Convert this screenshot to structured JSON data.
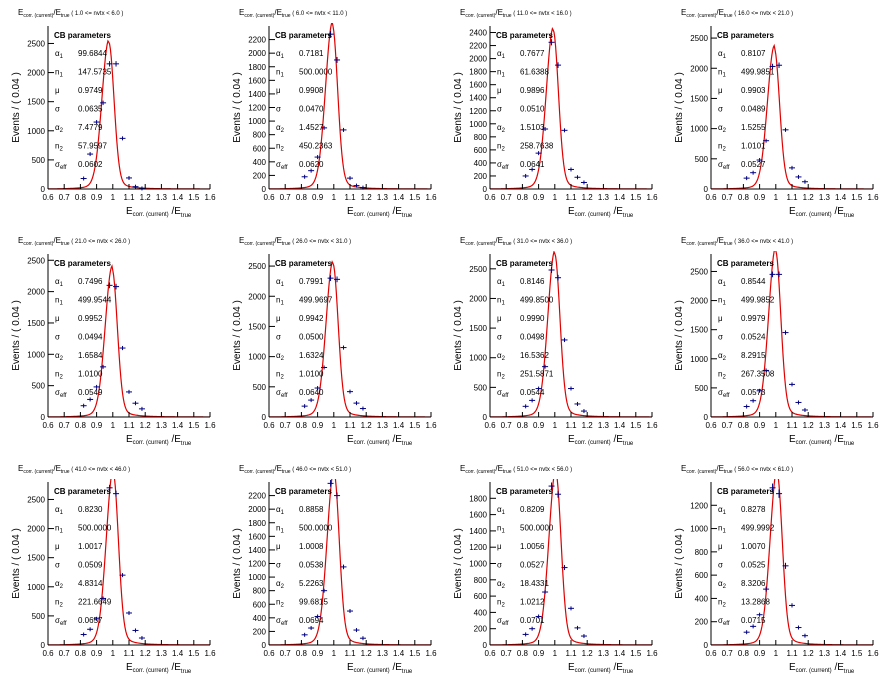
{
  "common": {
    "ylabel": "Events / ( 0.04 )",
    "xlabel_main": "E",
    "xlabel_sub": "corr. (current)",
    "xlabel_div": "/E",
    "xlabel_sub2": "true",
    "title_main": "E",
    "title_sub": "corr. (current)",
    "title_div": "/E",
    "title_sub2": "true",
    "legend_header": "CB parameters",
    "param_symbols": [
      {
        "sym": "α",
        "sub": "1"
      },
      {
        "sym": "n",
        "sub": "1"
      },
      {
        "sym": "μ",
        "sub": ""
      },
      {
        "sym": "σ",
        "sub": ""
      },
      {
        "sym": "α",
        "sub": "2"
      },
      {
        "sym": "n",
        "sub": "2"
      },
      {
        "sym": "σ",
        "sub": "eff"
      }
    ],
    "x_ticks": [
      "0.6",
      "0.7",
      "0.8",
      "0.9",
      "1",
      "1.1",
      "1.2",
      "1.3",
      "1.4",
      "1.5",
      "1.6"
    ],
    "colors": {
      "fit": "#e00000",
      "data": "#000080",
      "axis": "#000000"
    }
  },
  "chart_data": [
    {
      "type": "line",
      "title": "( 1.0 <= nvtx < 6.0 )",
      "xlim": [
        0.6,
        1.6
      ],
      "ylim": [
        0,
        2800
      ],
      "y_ticks": [
        0,
        500,
        1000,
        1500,
        2000,
        2500
      ],
      "peak": 2380,
      "params": [
        "99.6844",
        "147.5735",
        "0.9749",
        "0.0635",
        "7.4779",
        "57.9597",
        "0.0602"
      ],
      "points": [
        [
          0.82,
          180
        ],
        [
          0.86,
          600
        ],
        [
          0.9,
          1150
        ],
        [
          0.94,
          1480
        ],
        [
          0.98,
          2150
        ],
        [
          1.02,
          2150
        ],
        [
          1.06,
          870
        ],
        [
          1.1,
          190
        ],
        [
          1.14,
          40
        ],
        [
          1.18,
          10
        ]
      ]
    },
    {
      "type": "line",
      "title": "( 6.0 <= nvtx < 11.0 )",
      "xlim": [
        0.6,
        1.6
      ],
      "ylim": [
        0,
        2400
      ],
      "y_ticks": [
        0,
        200,
        400,
        600,
        800,
        1000,
        1200,
        1400,
        1600,
        1800,
        2000,
        2200
      ],
      "peak": 2280,
      "params": [
        "0.7181",
        "500.0000",
        "0.9908",
        "0.0470",
        "1.4527",
        "450.2363",
        "0.0620"
      ],
      "points": [
        [
          0.82,
          180
        ],
        [
          0.86,
          270
        ],
        [
          0.9,
          470
        ],
        [
          0.94,
          900
        ],
        [
          0.98,
          2280
        ],
        [
          1.02,
          1900
        ],
        [
          1.06,
          870
        ],
        [
          1.1,
          160
        ],
        [
          1.14,
          50
        ],
        [
          1.18,
          20
        ]
      ]
    },
    {
      "type": "line",
      "title": "( 11.0 <= nvtx < 16.0 )",
      "xlim": [
        0.6,
        1.6
      ],
      "ylim": [
        0,
        2500
      ],
      "y_ticks": [
        0,
        200,
        400,
        600,
        800,
        1000,
        1200,
        1400,
        1600,
        1800,
        2000,
        2200,
        2400
      ],
      "peak": 2300,
      "params": [
        "0.7677",
        "61.6388",
        "0.9896",
        "0.0510",
        "1.5103",
        "258.7638",
        "0.0641"
      ],
      "points": [
        [
          0.82,
          200
        ],
        [
          0.86,
          300
        ],
        [
          0.9,
          550
        ],
        [
          0.94,
          920
        ],
        [
          0.98,
          2250
        ],
        [
          1.02,
          1900
        ],
        [
          1.06,
          900
        ],
        [
          1.1,
          300
        ],
        [
          1.14,
          180
        ],
        [
          1.18,
          100
        ]
      ]
    },
    {
      "type": "line",
      "title": "( 16.0 <= nvtx < 21.0 )",
      "xlim": [
        0.6,
        1.6
      ],
      "ylim": [
        0,
        2700
      ],
      "y_ticks": [
        0,
        500,
        1000,
        1500,
        2000,
        2500
      ],
      "peak": 2200,
      "params": [
        "0.8107",
        "499.9851",
        "0.9903",
        "0.0489",
        "1.5255",
        "1.0101",
        "0.0527"
      ],
      "points": [
        [
          0.82,
          180
        ],
        [
          0.86,
          270
        ],
        [
          0.9,
          480
        ],
        [
          0.94,
          800
        ],
        [
          0.98,
          2030
        ],
        [
          1.02,
          2050
        ],
        [
          1.06,
          980
        ],
        [
          1.1,
          350
        ],
        [
          1.14,
          200
        ],
        [
          1.18,
          120
        ]
      ]
    },
    {
      "type": "line",
      "title": "( 21.0 <= nvtx < 26.0 )",
      "xlim": [
        0.6,
        1.6
      ],
      "ylim": [
        0,
        2600
      ],
      "y_ticks": [
        0,
        500,
        1000,
        1500,
        2000,
        2500
      ],
      "peak": 2230,
      "params": [
        "0.7496",
        "499.9544",
        "0.9952",
        "0.0494",
        "1.6584",
        "1.0100",
        "0.0549"
      ],
      "points": [
        [
          0.82,
          180
        ],
        [
          0.86,
          280
        ],
        [
          0.9,
          480
        ],
        [
          0.94,
          800
        ],
        [
          0.98,
          2100
        ],
        [
          1.02,
          2080
        ],
        [
          1.06,
          1100
        ],
        [
          1.1,
          400
        ],
        [
          1.14,
          220
        ],
        [
          1.18,
          130
        ]
      ]
    },
    {
      "type": "line",
      "title": "( 26.0 <= nvtx < 31.0 )",
      "xlim": [
        0.6,
        1.6
      ],
      "ylim": [
        0,
        2700
      ],
      "y_ticks": [
        0,
        500,
        1000,
        1500,
        2000,
        2500
      ],
      "peak": 2400,
      "params": [
        "0.7991",
        "499.9697",
        "0.9942",
        "0.0500",
        "1.6324",
        "1.0100",
        "0.0640"
      ],
      "points": [
        [
          0.82,
          180
        ],
        [
          0.86,
          280
        ],
        [
          0.9,
          480
        ],
        [
          0.94,
          820
        ],
        [
          0.98,
          2300
        ],
        [
          1.02,
          2280
        ],
        [
          1.06,
          1150
        ],
        [
          1.1,
          420
        ],
        [
          1.14,
          230
        ],
        [
          1.18,
          140
        ]
      ]
    },
    {
      "type": "line",
      "title": "( 31.0 <= nvtx < 36.0 )",
      "xlim": [
        0.6,
        1.6
      ],
      "ylim": [
        0,
        2750
      ],
      "y_ticks": [
        0,
        500,
        1000,
        1500,
        2000,
        2500
      ],
      "peak": 2600,
      "params": [
        "0.8146",
        "499.8500",
        "0.9990",
        "0.0498",
        "16.5362",
        "251.5871",
        "0.0544"
      ],
      "points": [
        [
          0.82,
          180
        ],
        [
          0.86,
          280
        ],
        [
          0.9,
          480
        ],
        [
          0.94,
          850
        ],
        [
          0.98,
          2480
        ],
        [
          1.02,
          2350
        ],
        [
          1.06,
          1300
        ],
        [
          1.1,
          480
        ],
        [
          1.14,
          220
        ],
        [
          1.18,
          100
        ]
      ]
    },
    {
      "type": "line",
      "title": "( 36.0 <= nvtx < 41.0 )",
      "xlim": [
        0.6,
        1.6
      ],
      "ylim": [
        0,
        2800
      ],
      "y_ticks": [
        0,
        500,
        1000,
        1500,
        2000,
        2500
      ],
      "peak": 2700,
      "params": [
        "0.8544",
        "499.9852",
        "0.9979",
        "0.0524",
        "8.2915",
        "267.3508",
        "0.0573"
      ],
      "points": [
        [
          0.82,
          180
        ],
        [
          0.86,
          280
        ],
        [
          0.9,
          450
        ],
        [
          0.94,
          800
        ],
        [
          0.98,
          2450
        ],
        [
          1.02,
          2450
        ],
        [
          1.06,
          1450
        ],
        [
          1.1,
          560
        ],
        [
          1.14,
          250
        ],
        [
          1.18,
          120
        ]
      ]
    },
    {
      "type": "line",
      "title": "( 41.0 <= nvtx < 46.0 )",
      "xlim": [
        0.6,
        1.6
      ],
      "ylim": [
        0,
        2800
      ],
      "y_ticks": [
        0,
        500,
        1000,
        1500,
        2000,
        2500
      ],
      "peak": 2800,
      "params": [
        "0.8230",
        "500.0000",
        "1.0017",
        "0.0509",
        "4.8314",
        "221.6649",
        "0.0657"
      ],
      "points": [
        [
          0.82,
          180
        ],
        [
          0.86,
          270
        ],
        [
          0.9,
          450
        ],
        [
          0.94,
          800
        ],
        [
          0.98,
          2700
        ],
        [
          1.02,
          2600
        ],
        [
          1.06,
          1200
        ],
        [
          1.1,
          550
        ],
        [
          1.14,
          250
        ],
        [
          1.18,
          120
        ]
      ]
    },
    {
      "type": "line",
      "title": "( 46.0 <= nvtx < 51.0 )",
      "xlim": [
        0.6,
        1.6
      ],
      "ylim": [
        0,
        2400
      ],
      "y_ticks": [
        0,
        200,
        400,
        600,
        800,
        1000,
        1200,
        1400,
        1600,
        1800,
        2000,
        2200
      ],
      "peak": 2400,
      "params": [
        "0.8858",
        "500.0000",
        "1.0008",
        "0.0538",
        "5.2263",
        "99.6815",
        "0.0694"
      ],
      "points": [
        [
          0.82,
          150
        ],
        [
          0.86,
          250
        ],
        [
          0.9,
          420
        ],
        [
          0.94,
          800
        ],
        [
          0.98,
          2380
        ],
        [
          1.02,
          2200
        ],
        [
          1.06,
          1150
        ],
        [
          1.1,
          500
        ],
        [
          1.14,
          220
        ],
        [
          1.18,
          100
        ]
      ]
    },
    {
      "type": "line",
      "title": "( 51.0 <= nvtx < 56.0 )",
      "xlim": [
        0.6,
        1.6
      ],
      "ylim": [
        0,
        2000
      ],
      "y_ticks": [
        0,
        200,
        400,
        600,
        800,
        1000,
        1200,
        1400,
        1600,
        1800
      ],
      "peak": 2000,
      "params": [
        "0.8209",
        "500.0000",
        "1.0056",
        "0.0527",
        "18.4331",
        "1.0212",
        "0.0701"
      ],
      "points": [
        [
          0.82,
          130
        ],
        [
          0.86,
          200
        ],
        [
          0.9,
          350
        ],
        [
          0.94,
          650
        ],
        [
          0.98,
          1950
        ],
        [
          1.02,
          1850
        ],
        [
          1.06,
          950
        ],
        [
          1.1,
          450
        ],
        [
          1.14,
          210
        ],
        [
          1.18,
          110
        ]
      ]
    },
    {
      "type": "line",
      "title": "( 56.0 <= nvtx < 61.0 )",
      "xlim": [
        0.6,
        1.6
      ],
      "ylim": [
        0,
        1400
      ],
      "y_ticks": [
        0,
        200,
        400,
        600,
        800,
        1000,
        1200
      ],
      "peak": 1400,
      "params": [
        "0.8278",
        "499.9992",
        "1.0070",
        "0.0525",
        "8.3206",
        "13.2868",
        "0.0715"
      ],
      "points": [
        [
          0.82,
          110
        ],
        [
          0.86,
          160
        ],
        [
          0.9,
          260
        ],
        [
          0.94,
          480
        ],
        [
          0.98,
          1350
        ],
        [
          1.02,
          1300
        ],
        [
          1.06,
          680
        ],
        [
          1.1,
          340
        ],
        [
          1.14,
          150
        ],
        [
          1.18,
          80
        ]
      ]
    }
  ]
}
